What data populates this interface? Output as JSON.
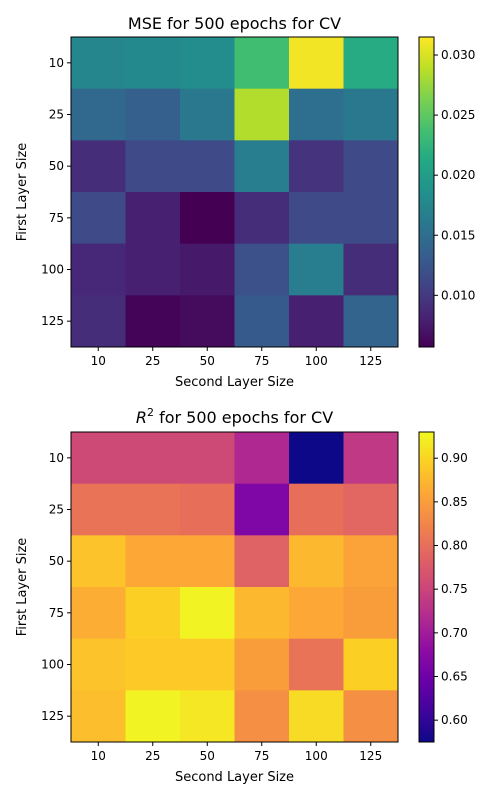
{
  "chart_data": [
    {
      "type": "heatmap",
      "title": "MSE for 500 epochs for CV",
      "xlabel": "Second Layer Size",
      "ylabel": "First Layer Size",
      "x_categories": [
        "10",
        "25",
        "50",
        "75",
        "100",
        "125"
      ],
      "y_categories": [
        "10",
        "25",
        "50",
        "75",
        "100",
        "125"
      ],
      "colormap": "viridis",
      "vmin": 0.0057,
      "vmax": 0.0315,
      "colorbar_ticks": [
        0.01,
        0.015,
        0.02,
        0.025,
        0.03
      ],
      "colorbar_tick_labels": [
        "0.010",
        "0.015",
        "0.020",
        "0.025",
        "0.030"
      ],
      "values": [
        [
          0.0175,
          0.0178,
          0.0182,
          0.0235,
          0.031,
          0.0215
        ],
        [
          0.0145,
          0.0135,
          0.016,
          0.0285,
          0.015,
          0.016
        ],
        [
          0.009,
          0.0115,
          0.0115,
          0.0165,
          0.0095,
          0.0115
        ],
        [
          0.0115,
          0.008,
          0.0057,
          0.009,
          0.0115,
          0.0115
        ],
        [
          0.0085,
          0.008,
          0.0075,
          0.012,
          0.0165,
          0.009
        ],
        [
          0.009,
          0.006,
          0.0065,
          0.013,
          0.008,
          0.014
        ]
      ]
    },
    {
      "type": "heatmap",
      "title_main": "R",
      "title_sup": "2",
      "title_rest": " for 500 epochs for CV",
      "xlabel": "Second Layer Size",
      "ylabel": "First Layer Size",
      "x_categories": [
        "10",
        "25",
        "50",
        "75",
        "100",
        "125"
      ],
      "y_categories": [
        "10",
        "25",
        "50",
        "75",
        "100",
        "125"
      ],
      "colormap": "plasma",
      "vmin": 0.575,
      "vmax": 0.93,
      "colorbar_ticks": [
        0.6,
        0.65,
        0.7,
        0.75,
        0.8,
        0.85,
        0.9
      ],
      "colorbar_tick_labels": [
        "0.60",
        "0.65",
        "0.70",
        "0.75",
        "0.80",
        "0.85",
        "0.90"
      ],
      "values": [
        [
          0.755,
          0.755,
          0.755,
          0.715,
          0.575,
          0.735
        ],
        [
          0.805,
          0.805,
          0.8,
          0.665,
          0.8,
          0.79
        ],
        [
          0.885,
          0.86,
          0.86,
          0.785,
          0.875,
          0.855
        ],
        [
          0.865,
          0.895,
          0.925,
          0.875,
          0.86,
          0.85
        ],
        [
          0.885,
          0.89,
          0.89,
          0.85,
          0.805,
          0.895
        ],
        [
          0.88,
          0.925,
          0.915,
          0.835,
          0.905,
          0.835
        ]
      ]
    }
  ]
}
